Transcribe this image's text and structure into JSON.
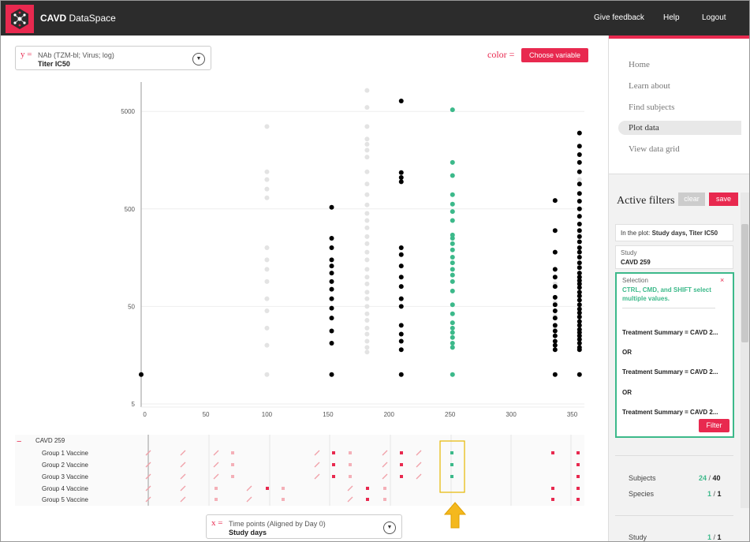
{
  "header": {
    "title_bold": "CAVD",
    "title_rest": " DataSpace",
    "links": [
      "Give feedback",
      "Help",
      "Logout"
    ]
  },
  "y_axis_selector": {
    "letter": "y =",
    "line1": "NAb (TZM-bl; Virus; log)",
    "line2": "Titer IC50"
  },
  "x_axis_selector": {
    "letter": "x =",
    "line1": "Time points (Aligned by Day 0)",
    "line2": "Study days"
  },
  "color_control": {
    "label": "color =",
    "button": "Choose variable"
  },
  "colors": {
    "accent": "#e8294f",
    "selected": "#3cb98a",
    "point": "#000000",
    "faded": "#e3e3e3",
    "header": "#2c2c2c"
  },
  "chart_data": {
    "type": "scatter",
    "y_scale": "log",
    "y_ticks": [
      "5000",
      "500",
      "50",
      "5"
    ],
    "x_ticks": [
      "0",
      "50",
      "100",
      "150",
      "200",
      "250",
      "300",
      "350"
    ],
    "xlim": [
      -3,
      360
    ],
    "ylim": [
      5,
      10000
    ],
    "series": [
      {
        "color": "faded",
        "points": [
          [
            100,
            3500
          ],
          [
            100,
            1200
          ],
          [
            100,
            1000
          ],
          [
            100,
            800
          ],
          [
            100,
            650
          ],
          [
            100,
            200
          ],
          [
            100,
            150
          ],
          [
            100,
            120
          ],
          [
            100,
            90
          ],
          [
            100,
            60
          ],
          [
            100,
            45
          ],
          [
            100,
            30
          ],
          [
            100,
            20
          ],
          [
            100,
            10
          ],
          [
            182,
            8200
          ],
          [
            182,
            5500
          ],
          [
            182,
            3500
          ],
          [
            182,
            2600
          ],
          [
            182,
            2300
          ],
          [
            182,
            2000
          ],
          [
            182,
            1700
          ],
          [
            182,
            1200
          ],
          [
            182,
            900
          ],
          [
            182,
            700
          ],
          [
            182,
            550
          ],
          [
            182,
            450
          ],
          [
            182,
            380
          ],
          [
            182,
            320
          ],
          [
            182,
            260
          ],
          [
            182,
            220
          ],
          [
            182,
            180
          ],
          [
            182,
            150
          ],
          [
            182,
            120
          ],
          [
            182,
            100
          ],
          [
            182,
            85
          ],
          [
            182,
            70
          ],
          [
            182,
            60
          ],
          [
            182,
            50
          ],
          [
            182,
            42
          ],
          [
            182,
            36
          ],
          [
            182,
            30
          ],
          [
            182,
            26
          ],
          [
            182,
            22
          ],
          [
            182,
            19
          ],
          [
            182,
            17
          ],
          [
            336,
            85
          ],
          [
            336,
            55
          ],
          [
            336,
            40
          ],
          [
            336,
            30
          ],
          [
            356,
            1000
          ],
          [
            356,
            280
          ],
          [
            356,
            130
          ],
          [
            356,
            70
          ],
          [
            356,
            40
          ]
        ]
      },
      {
        "color": "point",
        "points": [
          [
            -3,
            10
          ],
          [
            153,
            520
          ],
          [
            153,
            250
          ],
          [
            153,
            200
          ],
          [
            153,
            150
          ],
          [
            153,
            130
          ],
          [
            153,
            110
          ],
          [
            153,
            90
          ],
          [
            153,
            75
          ],
          [
            153,
            60
          ],
          [
            153,
            48
          ],
          [
            153,
            38
          ],
          [
            153,
            28
          ],
          [
            153,
            21
          ],
          [
            153,
            10
          ],
          [
            210,
            6400
          ],
          [
            210,
            1180
          ],
          [
            210,
            1050
          ],
          [
            210,
            950
          ],
          [
            210,
            200
          ],
          [
            210,
            170
          ],
          [
            210,
            130
          ],
          [
            210,
            100
          ],
          [
            210,
            80
          ],
          [
            210,
            60
          ],
          [
            210,
            50
          ],
          [
            210,
            32
          ],
          [
            210,
            26
          ],
          [
            210,
            22
          ],
          [
            210,
            18
          ],
          [
            210,
            10
          ],
          [
            336,
            610
          ],
          [
            336,
            300
          ],
          [
            336,
            180
          ],
          [
            336,
            120
          ],
          [
            336,
            100
          ],
          [
            336,
            80
          ],
          [
            336,
            62
          ],
          [
            336,
            52
          ],
          [
            336,
            45
          ],
          [
            336,
            38
          ],
          [
            336,
            32
          ],
          [
            336,
            28
          ],
          [
            336,
            25
          ],
          [
            336,
            22
          ],
          [
            336,
            20
          ],
          [
            336,
            18
          ],
          [
            336,
            10
          ],
          [
            356,
            3000
          ],
          [
            356,
            2200
          ],
          [
            356,
            1800
          ],
          [
            356,
            1500
          ],
          [
            356,
            1200
          ],
          [
            356,
            900
          ],
          [
            356,
            720
          ],
          [
            356,
            600
          ],
          [
            356,
            500
          ],
          [
            356,
            420
          ],
          [
            356,
            350
          ],
          [
            356,
            300
          ],
          [
            356,
            260
          ],
          [
            356,
            230
          ],
          [
            356,
            200
          ],
          [
            356,
            180
          ],
          [
            356,
            160
          ],
          [
            356,
            140
          ],
          [
            356,
            125
          ],
          [
            356,
            110
          ],
          [
            356,
            100
          ],
          [
            356,
            92
          ],
          [
            356,
            85
          ],
          [
            356,
            78
          ],
          [
            356,
            70
          ],
          [
            356,
            64
          ],
          [
            356,
            58
          ],
          [
            356,
            52
          ],
          [
            356,
            47
          ],
          [
            356,
            43
          ],
          [
            356,
            39
          ],
          [
            356,
            35
          ],
          [
            356,
            32
          ],
          [
            356,
            29
          ],
          [
            356,
            27
          ],
          [
            356,
            25
          ],
          [
            356,
            23
          ],
          [
            356,
            21
          ],
          [
            356,
            19
          ],
          [
            356,
            18
          ],
          [
            356,
            10
          ]
        ]
      },
      {
        "color": "selected",
        "points": [
          [
            252,
            5200
          ],
          [
            252,
            1500
          ],
          [
            252,
            1100
          ],
          [
            252,
            700
          ],
          [
            252,
            560
          ],
          [
            252,
            470
          ],
          [
            252,
            380
          ],
          [
            252,
            270
          ],
          [
            252,
            250
          ],
          [
            252,
            220
          ],
          [
            252,
            190
          ],
          [
            252,
            160
          ],
          [
            252,
            140
          ],
          [
            252,
            120
          ],
          [
            252,
            105
          ],
          [
            252,
            90
          ],
          [
            252,
            72
          ],
          [
            252,
            52
          ],
          [
            252,
            42
          ],
          [
            252,
            34
          ],
          [
            252,
            30
          ],
          [
            252,
            27
          ],
          [
            252,
            24
          ],
          [
            252,
            21
          ],
          [
            252,
            19
          ],
          [
            252,
            10
          ]
        ]
      }
    ]
  },
  "timeline": {
    "study": "CAVD 259",
    "collapse": "−",
    "groups": [
      "Group 1 Vaccine",
      "Group 2 Vaccine",
      "Group 3 Vaccine",
      "Group 4 Vaccine",
      "Group 5 Vaccine"
    ]
  },
  "nav": {
    "items": [
      "Home",
      "Learn about",
      "Find subjects",
      "Plot data",
      "View data grid"
    ],
    "active": "Plot data"
  },
  "filters": {
    "title": "Active filters",
    "clear": "clear",
    "save": "save",
    "in_plot_label": "In the plot:",
    "in_plot_value": "Study days, Titer IC50",
    "study_label": "Study",
    "study_value": "CAVD 259",
    "selection": {
      "header": "Selection",
      "close": "×",
      "hint": "CTRL, CMD, and SHIFT select multiple values.",
      "values": [
        "Treatment Summary = CAVD 2...",
        "Treatment Summary = CAVD 2...",
        "Treatment Summary = CAVD 2..."
      ],
      "or": "OR",
      "filter_button": "Filter"
    }
  },
  "stats": {
    "subjects_label": "Subjects",
    "subjects_sel": "24",
    "subjects_total": "40",
    "species_label": "Species",
    "species_sel": "1",
    "species_total": "1",
    "study_label": "Study",
    "study_sel": "1",
    "study_total": "1",
    "slash": " / "
  }
}
